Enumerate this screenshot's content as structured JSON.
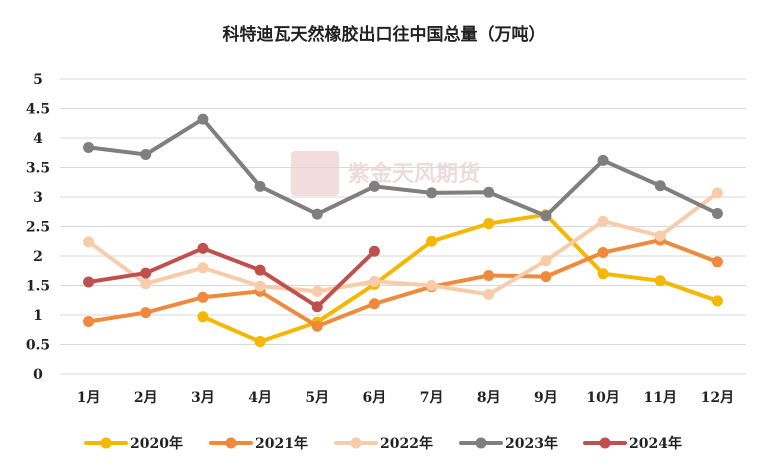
{
  "chart_data": {
    "type": "line",
    "title": "科特迪瓦天然橡胶出口往中国总量（万吨）",
    "categories": [
      "1月",
      "2月",
      "3月",
      "4月",
      "5月",
      "6月",
      "7月",
      "8月",
      "9月",
      "10月",
      "11月",
      "12月"
    ],
    "ylim": [
      0,
      5
    ],
    "yticks": [
      "0",
      "0.5",
      "1",
      "1.5",
      "2",
      "2.5",
      "3",
      "3.5",
      "4",
      "4.5",
      "5"
    ],
    "grid": true,
    "legend_position": "bottom",
    "series": [
      {
        "name": "2020年",
        "color": "#f5b800",
        "values": [
          null,
          null,
          0.97,
          0.55,
          0.88,
          1.52,
          2.25,
          2.55,
          2.7,
          1.7,
          1.58,
          1.24
        ]
      },
      {
        "name": "2021年",
        "color": "#ef8a3c",
        "values": [
          0.89,
          1.04,
          1.3,
          1.4,
          0.81,
          1.19,
          1.48,
          1.67,
          1.65,
          2.06,
          2.27,
          1.9
        ]
      },
      {
        "name": "2022年",
        "color": "#f7ccaa",
        "values": [
          2.24,
          1.53,
          1.8,
          1.49,
          1.4,
          1.57,
          1.5,
          1.35,
          1.92,
          2.59,
          2.34,
          3.07
        ]
      },
      {
        "name": "2023年",
        "color": "#7f7f7f",
        "values": [
          3.84,
          3.72,
          4.32,
          3.18,
          2.71,
          3.18,
          3.07,
          3.08,
          2.68,
          3.62,
          3.19,
          2.72
        ]
      },
      {
        "name": "2024年",
        "color": "#c0504d",
        "values": [
          1.56,
          1.71,
          2.13,
          1.76,
          1.14,
          2.08,
          null,
          null,
          null,
          null,
          null,
          null
        ]
      }
    ]
  },
  "watermark": {
    "text": "紫金天风期货"
  }
}
